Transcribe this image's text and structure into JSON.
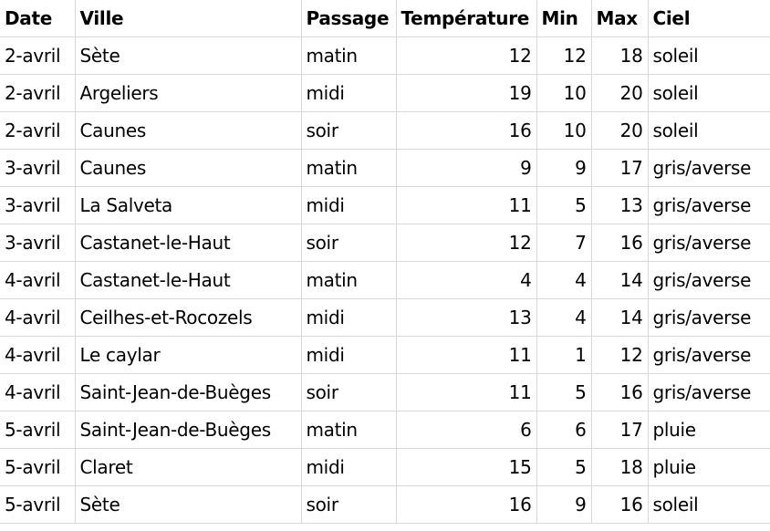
{
  "table": {
    "headers": [
      "Date",
      "Ville",
      "Passage",
      "Température",
      "Min",
      "Max",
      "Ciel"
    ],
    "rows": [
      [
        "2-avril",
        "Sète",
        "matin",
        "12",
        "12",
        "18",
        "soleil"
      ],
      [
        "2-avril",
        "Argeliers",
        "midi",
        "19",
        "10",
        "20",
        "soleil"
      ],
      [
        "2-avril",
        "Caunes",
        "soir",
        "16",
        "10",
        "20",
        "soleil"
      ],
      [
        "3-avril",
        "Caunes",
        "matin",
        "9",
        "9",
        "17",
        "gris/averse"
      ],
      [
        "3-avril",
        "La Salveta",
        "midi",
        "11",
        "5",
        "13",
        "gris/averse"
      ],
      [
        "3-avril",
        "Castanet-le-Haut",
        "soir",
        "12",
        "7",
        "16",
        "gris/averse"
      ],
      [
        "4-avril",
        "Castanet-le-Haut",
        "matin",
        "4",
        "4",
        "14",
        "gris/averse"
      ],
      [
        "4-avril",
        "Ceilhes-et-Rocozels",
        "midi",
        "13",
        "4",
        "14",
        "gris/averse"
      ],
      [
        "4-avril",
        "Le caylar",
        "midi",
        "11",
        "1",
        "12",
        "gris/averse"
      ],
      [
        "4-avril",
        "Saint-Jean-de-Buèges",
        "soir",
        "11",
        "5",
        "16",
        "gris/averse"
      ],
      [
        "5-avril",
        "Saint-Jean-de-Buèges",
        "matin",
        "6",
        "6",
        "17",
        "pluie"
      ],
      [
        "5-avril",
        "Claret",
        "midi",
        "15",
        "5",
        "18",
        "pluie"
      ],
      [
        "5-avril",
        "Sète",
        "soir",
        "16",
        "9",
        "16",
        "soleil"
      ]
    ]
  }
}
